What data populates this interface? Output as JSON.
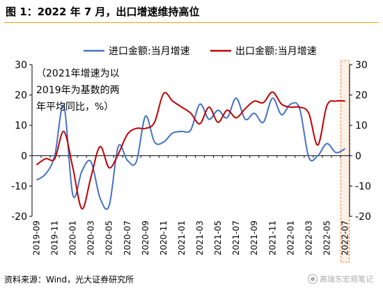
{
  "figure_title": "图 1：2022 年 7 月，出口增速维持高位",
  "source": "资料来源：Wind，光大证券研究所",
  "watermark": "高瑞东宏观笔记",
  "chart_data": {
    "type": "line",
    "title": "",
    "xlabel": "",
    "ylabel": "",
    "annotation": [
      "（2021年增速为以",
      "2019年为基数的两",
      "年平均同比，%）"
    ],
    "ylim": [
      -20,
      30
    ],
    "y2lim": [
      -20,
      30
    ],
    "yticks": [
      -20,
      -10,
      0,
      10,
      20,
      30
    ],
    "x_range": [
      "2019-09",
      "2022-07"
    ],
    "x_tick_labels": [
      "2019-09",
      "2019-11",
      "2020-01",
      "2020-03",
      "2020-05",
      "2020-07",
      "2020-09",
      "2020-11",
      "2021-01",
      "2021-03",
      "2021-05",
      "2021-07",
      "2021-09",
      "2021-11",
      "2022-01",
      "2022-03",
      "2022-05",
      "2022-07"
    ],
    "legend_position": "top",
    "grid": false,
    "highlight": {
      "x": "2022-07",
      "color": "#f08040"
    },
    "series": [
      {
        "name": "进口金额:当月增速",
        "color": "#4472c4",
        "points": [
          [
            "2019-09",
            -8.0
          ],
          [
            "2019-10",
            -6.0
          ],
          [
            "2019-11",
            0.0
          ],
          [
            "2019-12",
            16.5
          ],
          [
            "2020-01",
            -13.0
          ],
          [
            "2020-02",
            -5.0
          ],
          [
            "2020-03",
            -2.0
          ],
          [
            "2020-04",
            -14.0
          ],
          [
            "2020-05",
            -16.5
          ],
          [
            "2020-06",
            3.0
          ],
          [
            "2020-07",
            -1.5
          ],
          [
            "2020-08",
            -2.0
          ],
          [
            "2020-09",
            13.0
          ],
          [
            "2020-10",
            4.5
          ],
          [
            "2020-11",
            4.5
          ],
          [
            "2020-12",
            7.5
          ],
          [
            "2021-01",
            8.0
          ],
          [
            "2021-02",
            8.5
          ],
          [
            "2021-03",
            17.0
          ],
          [
            "2021-04",
            12.0
          ],
          [
            "2021-05",
            15.0
          ],
          [
            "2021-06",
            12.5
          ],
          [
            "2021-07",
            19.0
          ],
          [
            "2021-08",
            12.0
          ],
          [
            "2021-09",
            14.0
          ],
          [
            "2021-10",
            11.0
          ],
          [
            "2021-11",
            19.0
          ],
          [
            "2021-12",
            13.5
          ],
          [
            "2022-01",
            17.0
          ],
          [
            "2022-02",
            15.5
          ],
          [
            "2022-03",
            -0.5
          ],
          [
            "2022-04",
            0.0
          ],
          [
            "2022-05",
            4.0
          ],
          [
            "2022-06",
            1.0
          ],
          [
            "2022-07",
            2.3
          ]
        ]
      },
      {
        "name": "出口金额:当月增速",
        "color": "#c00000",
        "points": [
          [
            "2019-09",
            -3.0
          ],
          [
            "2019-10",
            -1.0
          ],
          [
            "2019-11",
            -1.0
          ],
          [
            "2019-12",
            8.0
          ],
          [
            "2020-01",
            -4.0
          ],
          [
            "2020-02",
            -17.5
          ],
          [
            "2020-03",
            -7.0
          ],
          [
            "2020-04",
            3.0
          ],
          [
            "2020-05",
            -4.0
          ],
          [
            "2020-06",
            0.5
          ],
          [
            "2020-07",
            7.0
          ],
          [
            "2020-08",
            9.0
          ],
          [
            "2020-09",
            9.0
          ],
          [
            "2020-10",
            11.0
          ],
          [
            "2020-11",
            20.5
          ],
          [
            "2020-12",
            18.0
          ],
          [
            "2021-01",
            16.0
          ],
          [
            "2021-02",
            14.0
          ],
          [
            "2021-03",
            10.5
          ],
          [
            "2021-04",
            16.0
          ],
          [
            "2021-05",
            11.0
          ],
          [
            "2021-06",
            15.0
          ],
          [
            "2021-07",
            12.5
          ],
          [
            "2021-08",
            15.5
          ],
          [
            "2021-09",
            18.0
          ],
          [
            "2021-10",
            17.5
          ],
          [
            "2021-11",
            21.0
          ],
          [
            "2021-12",
            17.0
          ],
          [
            "2022-01",
            16.0
          ],
          [
            "2022-02",
            16.0
          ],
          [
            "2022-03",
            14.0
          ],
          [
            "2022-04",
            3.5
          ],
          [
            "2022-05",
            16.5
          ],
          [
            "2022-06",
            18.0
          ],
          [
            "2022-07",
            18.0
          ]
        ]
      }
    ]
  }
}
